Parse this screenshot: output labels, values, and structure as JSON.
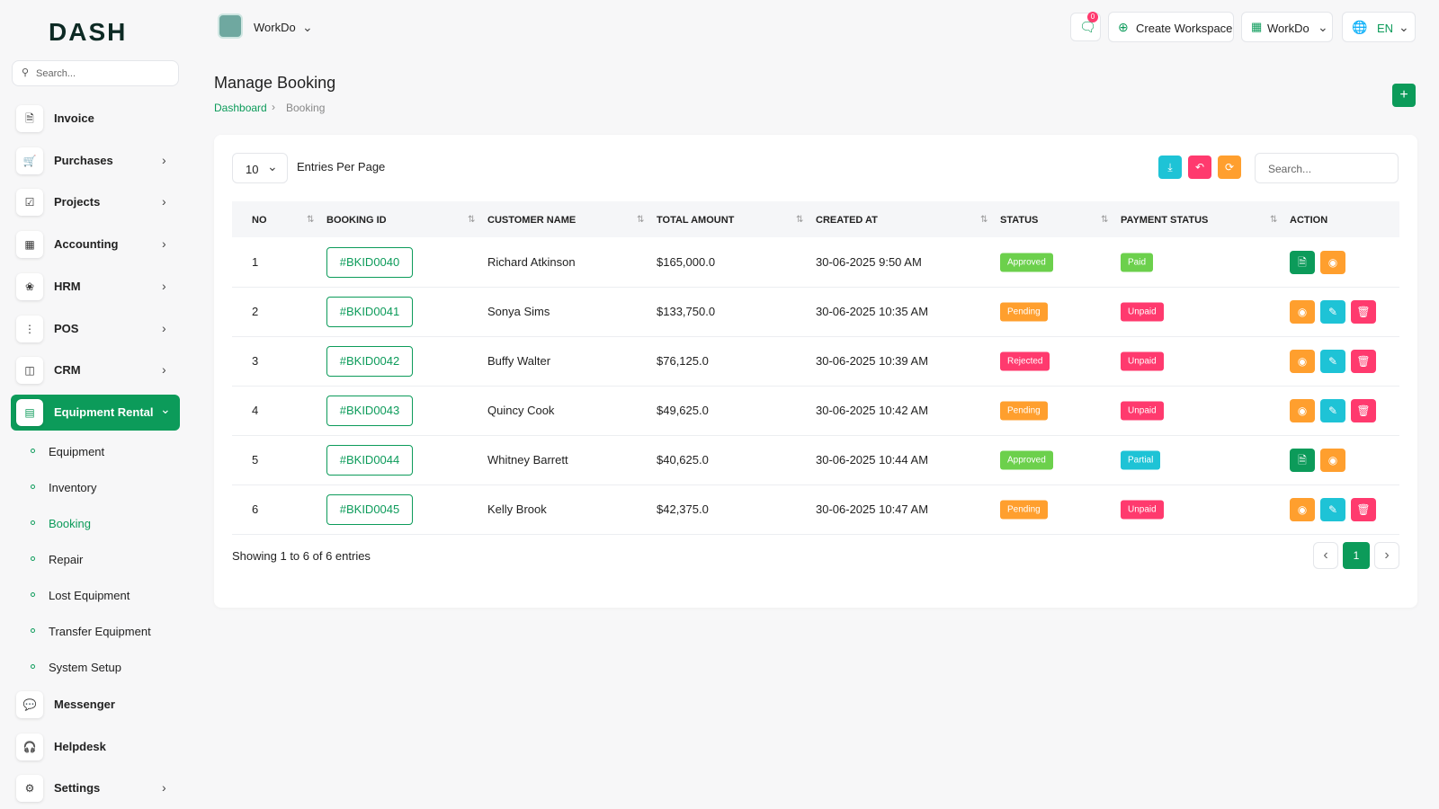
{
  "brand": "DASH",
  "sidebar": {
    "search": "Search...",
    "items": [
      {
        "label": "Invoice"
      },
      {
        "label": "Purchases"
      },
      {
        "label": "Projects"
      },
      {
        "label": "Accounting"
      },
      {
        "label": "HRM"
      },
      {
        "label": "POS"
      },
      {
        "label": "CRM"
      },
      {
        "label": "Equipment Rental",
        "children": [
          "Equipment",
          "Inventory",
          "Booking",
          "Repair",
          "Lost Equipment",
          "Transfer Equipment",
          "System Setup"
        ]
      },
      {
        "label": "Messenger"
      },
      {
        "label": "Helpdesk"
      },
      {
        "label": "Settings"
      }
    ]
  },
  "header": {
    "workspace": "WorkDo",
    "notifications": "0",
    "create": "Create Workspace",
    "user": "WorkDo",
    "language": "EN"
  },
  "page": {
    "title": "Manage Booking",
    "breadcrumb": [
      "Dashboard",
      "Booking"
    ]
  },
  "table": {
    "entries": "10",
    "entries_label": "Entries Per Page",
    "search": "Search...",
    "columns": [
      "NO",
      "BOOKING ID",
      "CUSTOMER NAME",
      "TOTAL AMOUNT",
      "CREATED AT",
      "STATUS",
      "PAYMENT STATUS",
      "ACTION"
    ],
    "rows": [
      [
        "1",
        "#BKID0040",
        "Richard Atkinson",
        "$165,000.0",
        "30-06-2025 9:50 AM",
        {
          "label": "Approved",
          "color": "#6cd04c"
        },
        {
          "label": "Paid",
          "color": "#6cd04c"
        }
      ],
      [
        "2",
        "#BKID0041",
        "Sonya Sims",
        "$133,750.0",
        "30-06-2025 10:35 AM",
        {
          "label": "Pending",
          "color": "#ff9f2e"
        },
        {
          "label": "Unpaid",
          "color": "#ff3a6e"
        }
      ],
      [
        "3",
        "#BKID0042",
        "Buffy Walter",
        "$76,125.0",
        "30-06-2025 10:39 AM",
        {
          "label": "Rejected",
          "color": "#ff3a6e"
        },
        {
          "label": "Unpaid",
          "color": "#ff3a6e"
        }
      ],
      [
        "4",
        "#BKID0043",
        "Quincy Cook",
        "$49,625.0",
        "30-06-2025 10:42 AM",
        {
          "label": "Pending",
          "color": "#ff9f2e"
        },
        {
          "label": "Unpaid",
          "color": "#ff3a6e"
        }
      ],
      [
        "5",
        "#BKID0044",
        "Whitney Barrett",
        "$40,625.0",
        "30-06-2025 10:44 AM",
        {
          "label": "Approved",
          "color": "#6cd04c"
        },
        {
          "label": "Partial",
          "color": "#1ec3d6"
        }
      ],
      [
        "6",
        "#BKID0045",
        "Kelly Brook",
        "$42,375.0",
        "30-06-2025 10:47 AM",
        {
          "label": "Pending",
          "color": "#ff9f2e"
        },
        {
          "label": "Unpaid",
          "color": "#ff3a6e"
        }
      ]
    ],
    "footer": "Showing 1 to 6 of 6 entries",
    "page": "1"
  }
}
